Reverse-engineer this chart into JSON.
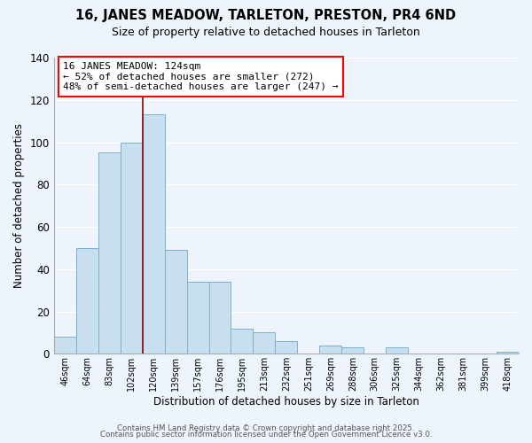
{
  "title": "16, JANES MEADOW, TARLETON, PRESTON, PR4 6ND",
  "subtitle": "Size of property relative to detached houses in Tarleton",
  "xlabel": "Distribution of detached houses by size in Tarleton",
  "ylabel": "Number of detached properties",
  "bar_color": "#c8dff0",
  "bar_edgecolor": "#7ab0d0",
  "vline_color": "#8b0000",
  "categories": [
    "46sqm",
    "64sqm",
    "83sqm",
    "102sqm",
    "120sqm",
    "139sqm",
    "157sqm",
    "176sqm",
    "195sqm",
    "213sqm",
    "232sqm",
    "251sqm",
    "269sqm",
    "288sqm",
    "306sqm",
    "325sqm",
    "344sqm",
    "362sqm",
    "381sqm",
    "399sqm",
    "418sqm"
  ],
  "values": [
    8,
    50,
    95,
    100,
    113,
    49,
    34,
    34,
    12,
    10,
    6,
    0,
    4,
    3,
    0,
    3,
    0,
    0,
    0,
    0,
    1
  ],
  "highlight_bar_index": 4,
  "vline_bar_index": 4,
  "ylim": [
    0,
    140
  ],
  "yticks": [
    0,
    20,
    40,
    60,
    80,
    100,
    120,
    140
  ],
  "annotation_title": "16 JANES MEADOW: 124sqm",
  "annotation_line1": "← 52% of detached houses are smaller (272)",
  "annotation_line2": "48% of semi-detached houses are larger (247) →",
  "footer1": "Contains HM Land Registry data © Crown copyright and database right 2025.",
  "footer2": "Contains public sector information licensed under the Open Government Licence v3.0.",
  "background_color": "#eef4fb",
  "grid_color": "#ffffff"
}
